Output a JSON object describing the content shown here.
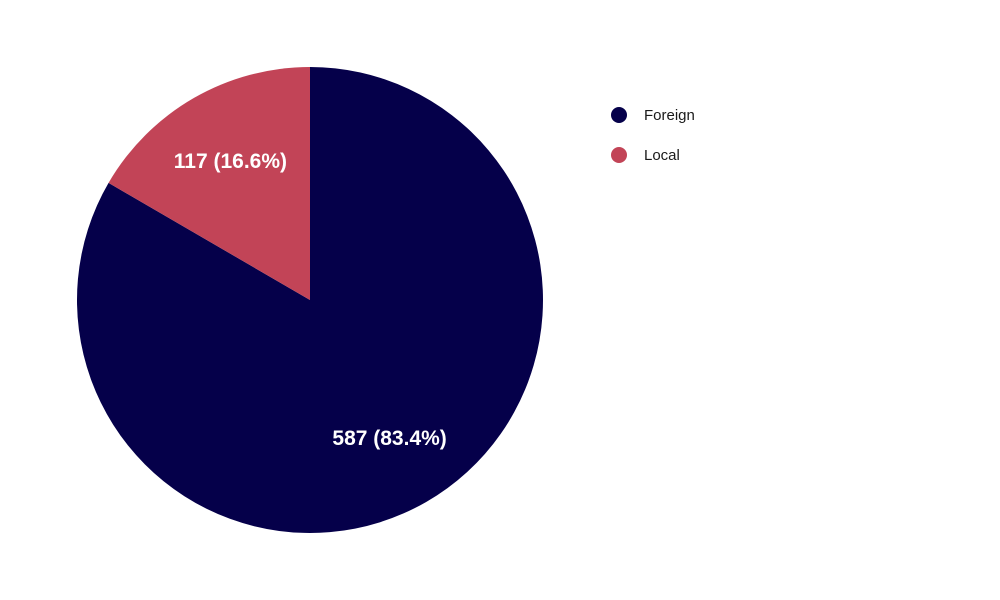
{
  "chart_data": {
    "type": "pie",
    "title": "",
    "start_angle_deg": 0,
    "direction": "clockwise",
    "legend_position": "top-right",
    "slices": [
      {
        "name": "Foreign",
        "value": 587,
        "percent": 83.4,
        "label": "587 (83.4%)",
        "color": "#05004a"
      },
      {
        "name": "Local",
        "value": 117,
        "percent": 16.6,
        "label": "117 (16.6%)",
        "color": "#c24457"
      }
    ]
  }
}
